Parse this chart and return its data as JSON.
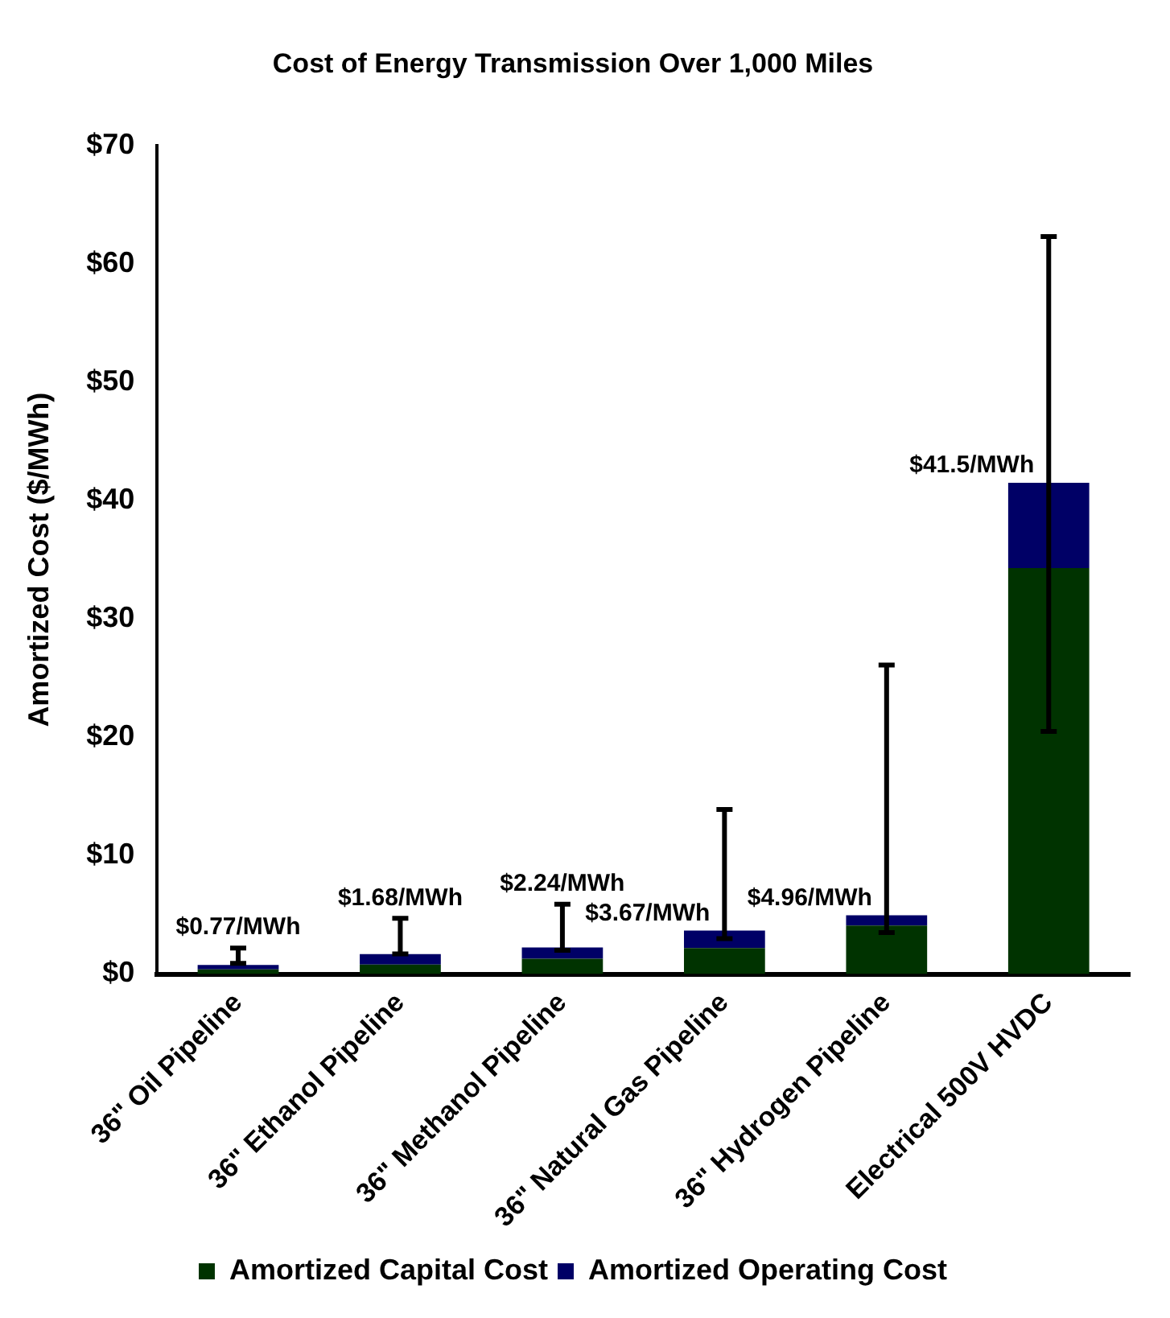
{
  "chart_data": {
    "type": "bar",
    "title": "Cost of Energy Transmission Over 1,000 Miles",
    "ylabel": "Amortized Cost ($/MWh)",
    "categories": [
      "36\" Oil Pipeline",
      "36\" Ethanol Pipeline",
      "36\" Methanol Pipeline",
      "36\" Natural Gas Pipeline",
      "36\" Hydrogen Pipeline",
      "Electrical 500V HVDC"
    ],
    "stacked": true,
    "series": [
      {
        "name": "Amortized Capital Cost",
        "color": "#003300",
        "values": [
          0.4,
          0.8,
          1.3,
          2.2,
          4.1,
          34.3
        ]
      },
      {
        "name": "Amortized Operating Cost",
        "color": "#000066",
        "values": [
          0.37,
          0.88,
          0.94,
          1.47,
          0.86,
          7.2
        ],
        "errors": [
          [
            0.9,
            2.2
          ],
          [
            1.7,
            4.7
          ],
          [
            2.0,
            5.9
          ],
          [
            3.0,
            13.9
          ],
          [
            3.5,
            26.1
          ],
          [
            20.5,
            62.3
          ]
        ]
      }
    ],
    "totals": [
      "$0.77/MWh",
      "$1.68/MWh",
      "$2.24/MWh",
      "$3.67/MWh",
      "$4.96/MWh",
      "$41.5/MWh"
    ],
    "ylim": [
      0,
      70
    ],
    "yticks": [
      {
        "value": 0,
        "label": "$0"
      },
      {
        "value": 10,
        "label": "$10"
      },
      {
        "value": 20,
        "label": "$20"
      },
      {
        "value": 30,
        "label": "$30"
      },
      {
        "value": 40,
        "label": "$40"
      },
      {
        "value": 50,
        "label": "$50"
      },
      {
        "value": 60,
        "label": "$60"
      },
      {
        "value": 70,
        "label": "$70"
      }
    ],
    "grid": false,
    "legend": "bottom"
  }
}
